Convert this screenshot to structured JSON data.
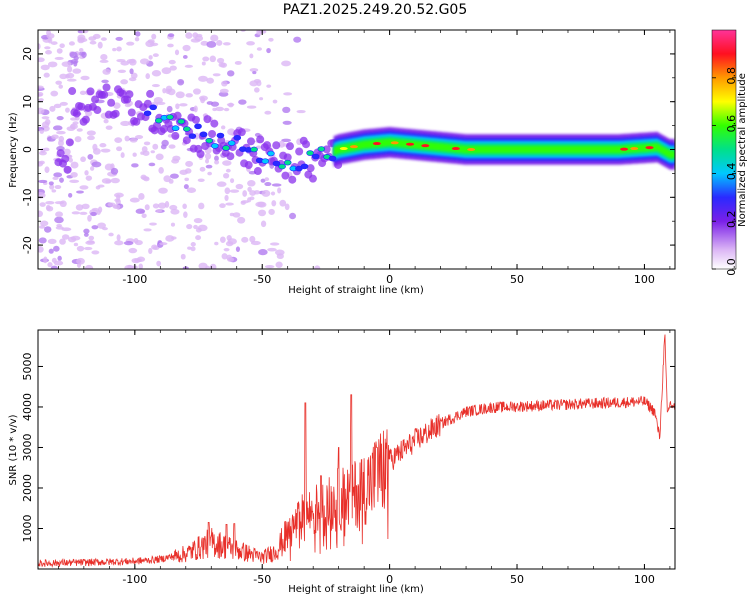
{
  "title": "PAZ1.2025.249.20.52.G05",
  "chart_data": [
    {
      "type": "heatmap",
      "xlabel": "Height of straight line (km)",
      "ylabel": "Frequency (Hz)",
      "xlim": [
        -138,
        112
      ],
      "ylim": [
        -25,
        25
      ],
      "xticks": [
        -100,
        -50,
        0,
        50,
        100
      ],
      "yticks": [
        -20,
        -10,
        0,
        10,
        20
      ],
      "colorbar": {
        "label": "Normalized spectral amplitude",
        "range": [
          0,
          1
        ],
        "ticks": [
          0.0,
          0.2,
          0.4,
          0.6,
          0.8
        ],
        "colors": [
          "#ffffff",
          "#dcb6f5",
          "#7a20e8",
          "#2a2aff",
          "#00c8ff",
          "#00e08a",
          "#33ff00",
          "#ffff00",
          "#ff9900",
          "#ff1020",
          "#ff3399"
        ]
      },
      "ridge": [
        {
          "x": -125,
          "y": 9
        },
        {
          "x": -110,
          "y": 10
        },
        {
          "x": -100,
          "y": 9
        },
        {
          "x": -90,
          "y": 7
        },
        {
          "x": -80,
          "y": 5
        },
        {
          "x": -70,
          "y": 2
        },
        {
          "x": -60,
          "y": 1
        },
        {
          "x": -50,
          "y": -1
        },
        {
          "x": -40,
          "y": -3
        },
        {
          "x": -30,
          "y": -2
        },
        {
          "x": -20,
          "y": 0
        },
        {
          "x": -10,
          "y": 1
        },
        {
          "x": 0,
          "y": 1.5
        },
        {
          "x": 10,
          "y": 1
        },
        {
          "x": 30,
          "y": 0
        },
        {
          "x": 60,
          "y": 0
        },
        {
          "x": 90,
          "y": 0
        },
        {
          "x": 105,
          "y": 0.5
        },
        {
          "x": 110,
          "y": -1
        }
      ]
    },
    {
      "type": "line",
      "xlabel": "Height of straight line (km)",
      "ylabel": "SNR (10 * v/v)",
      "xlim": [
        -138,
        112
      ],
      "ylim": [
        0,
        5900
      ],
      "xticks": [
        -100,
        -50,
        0,
        50,
        100
      ],
      "yticks": [
        1000,
        2000,
        3000,
        4000,
        5000
      ],
      "color": "#e8302a",
      "envelope": [
        {
          "x": -138,
          "y": 150
        },
        {
          "x": -120,
          "y": 170
        },
        {
          "x": -100,
          "y": 200
        },
        {
          "x": -90,
          "y": 250
        },
        {
          "x": -80,
          "y": 400
        },
        {
          "x": -70,
          "y": 700
        },
        {
          "x": -60,
          "y": 500
        },
        {
          "x": -50,
          "y": 300
        },
        {
          "x": -45,
          "y": 450
        },
        {
          "x": -40,
          "y": 900
        },
        {
          "x": -35,
          "y": 1300
        },
        {
          "x": -30,
          "y": 1500
        },
        {
          "x": -25,
          "y": 1600
        },
        {
          "x": -20,
          "y": 1800
        },
        {
          "x": -15,
          "y": 1900
        },
        {
          "x": -10,
          "y": 2100
        },
        {
          "x": -5,
          "y": 2400
        },
        {
          "x": 0,
          "y": 2700
        },
        {
          "x": 5,
          "y": 2950
        },
        {
          "x": 10,
          "y": 3200
        },
        {
          "x": 20,
          "y": 3600
        },
        {
          "x": 30,
          "y": 3900
        },
        {
          "x": 40,
          "y": 4000
        },
        {
          "x": 60,
          "y": 4050
        },
        {
          "x": 80,
          "y": 4100
        },
        {
          "x": 100,
          "y": 4150
        },
        {
          "x": 104,
          "y": 3900
        },
        {
          "x": 106,
          "y": 3250
        },
        {
          "x": 108,
          "y": 5800
        },
        {
          "x": 109,
          "y": 3800
        },
        {
          "x": 110,
          "y": 4100
        },
        {
          "x": 112,
          "y": 4000
        }
      ],
      "spikes": [
        {
          "x": -71,
          "y": 1150
        },
        {
          "x": -64,
          "y": 1100
        },
        {
          "x": -61,
          "y": 1120
        },
        {
          "x": -33,
          "y": 4100
        },
        {
          "x": -27,
          "y": 2300
        },
        {
          "x": -20,
          "y": 3000
        },
        {
          "x": -15,
          "y": 4300
        },
        {
          "x": -11,
          "y": 2700
        },
        {
          "x": -5,
          "y": 3000
        }
      ]
    }
  ]
}
